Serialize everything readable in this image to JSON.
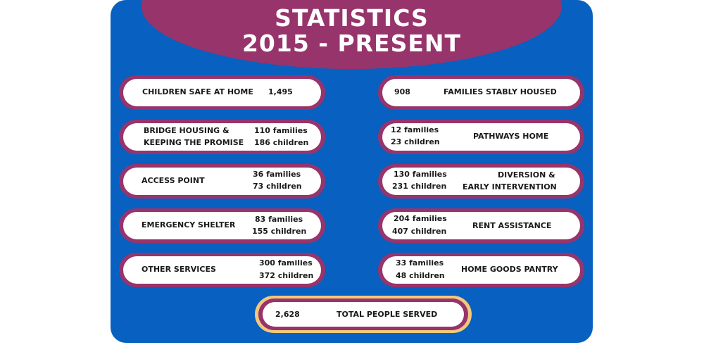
{
  "title": {
    "line1": "STATISTICS",
    "line2": "2015 - PRESENT"
  },
  "left_items": [
    {
      "label1": "CHILDREN SAFE AT HOME",
      "label2": "",
      "value1": "1,495",
      "value2": ""
    },
    {
      "label1": "BRIDGE HOUSING &",
      "label2": "KEEPING THE PROMISE",
      "value1": "110 families",
      "value2": "186 children"
    },
    {
      "label1": "ACCESS POINT",
      "label2": "",
      "value1": "36 families",
      "value2": "73 children"
    },
    {
      "label1": "EMERGENCY SHELTER",
      "label2": "",
      "value1": "83 families",
      "value2": "155 children"
    },
    {
      "label1": "OTHER SERVICES",
      "label2": "",
      "value1": "300 families",
      "value2": "372 children"
    }
  ],
  "right_items": [
    {
      "value1": "908",
      "value2": "",
      "label1": "FAMILIES STABLY HOUSED",
      "label2": ""
    },
    {
      "value1": "12 families",
      "value2": "23 children",
      "label1": "PATHWAYS HOME",
      "label2": ""
    },
    {
      "value1": "130 families",
      "value2": "231 children",
      "label1": "DIVERSION &",
      "label2": "EARLY INTERVENTION"
    },
    {
      "value1": "204 families",
      "value2": "407 children",
      "label1": "RENT ASSISTANCE",
      "label2": ""
    },
    {
      "value1": "33 families",
      "value2": "48 children",
      "label1": "HOME GOODS PANTRY",
      "label2": ""
    }
  ],
  "total": {
    "value": "2,628",
    "label": "TOTAL PEOPLE SERVED"
  },
  "colors": {
    "panel_blue": "#0860c0",
    "plum": "#97346c",
    "gold": "#f3c87a"
  }
}
